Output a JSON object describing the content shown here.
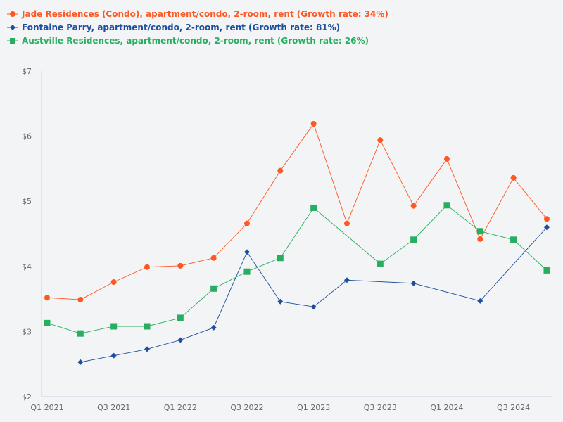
{
  "chart_data": {
    "type": "line",
    "categories": [
      "Q1 2021",
      "Q2 2021",
      "Q3 2021",
      "Q4 2021",
      "Q1 2022",
      "Q2 2022",
      "Q3 2022",
      "Q4 2022",
      "Q1 2023",
      "Q2 2023",
      "Q3 2023",
      "Q4 2023",
      "Q1 2024",
      "Q2 2024",
      "Q3 2024",
      "Q4 2024"
    ],
    "x_tick_labels": [
      "Q1 2021",
      "Q3 2021",
      "Q1 2022",
      "Q3 2022",
      "Q1 2023",
      "Q3 2023",
      "Q1 2024",
      "Q3 2024"
    ],
    "y_tick_labels": [
      "$2",
      "$3",
      "$4",
      "$5",
      "$6",
      "$7"
    ],
    "ylim": [
      2,
      7
    ],
    "grid": false,
    "legend_position": "top-left",
    "series": [
      {
        "name": "Jade Residences (Condo), apartment/condo, 2-room, rent (Growth rate: 34%)",
        "color": "#ff5722",
        "marker": "circle",
        "values": [
          3.52,
          3.49,
          3.76,
          3.99,
          4.01,
          4.13,
          4.66,
          5.47,
          6.19,
          4.66,
          5.94,
          4.93,
          5.65,
          4.42,
          5.36,
          4.73
        ]
      },
      {
        "name": "Fontaine Parry, apartment/condo, 2-room, rent (Growth rate: 81%)",
        "color": "#1f4e9e",
        "marker": "diamond",
        "values": [
          null,
          2.53,
          2.63,
          2.73,
          2.87,
          3.06,
          4.22,
          3.46,
          3.38,
          3.79,
          null,
          3.74,
          null,
          3.47,
          null,
          4.6
        ]
      },
      {
        "name": "Austville Residences, apartment/condo, 2-room, rent (Growth rate: 26%)",
        "color": "#27ae60",
        "marker": "square",
        "values": [
          3.13,
          2.97,
          3.08,
          3.08,
          3.21,
          3.66,
          3.92,
          4.13,
          4.9,
          null,
          4.04,
          4.41,
          4.94,
          4.54,
          4.41,
          3.94
        ]
      }
    ]
  }
}
